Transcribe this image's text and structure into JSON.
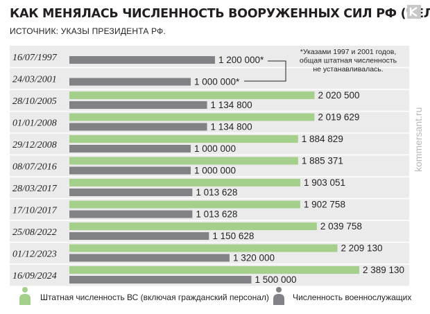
{
  "header": {
    "title": "КАК МЕНЯЛАСЬ ЧИСЛЕННОСТЬ ВООРУЖЕННЫХ СИЛ РФ (ЧЕЛ.)",
    "source": "ИСТОЧНИК: УКАЗЫ ПРЕЗИДЕНТА РФ.",
    "watermark": "kommersant.ru"
  },
  "colors": {
    "green": "#a4d08c",
    "gray": "#808285",
    "panel": "#ebebec",
    "separator": "#ffffff",
    "text": "#231f20"
  },
  "footnote": {
    "lines": [
      "*Указами 1997 и 2001 годов,",
      "общая штатная численность",
      "не устанавливалась."
    ]
  },
  "chart_data": {
    "type": "bar",
    "orientation": "horizontal",
    "categories": [
      "16/07/1997",
      "24/03/2001",
      "28/10/2005",
      "01/01/2008",
      "29/12/2008",
      "08/07/2016",
      "28/03/2017",
      "17/10/2017",
      "25/08/2022",
      "01/12/2023",
      "16/09/2024"
    ],
    "series": [
      {
        "name": "Штатная численность ВС (включая гражданский персонал)",
        "color": "#a4d08c",
        "values": [
          null,
          null,
          2020500,
          2019629,
          1884829,
          1885371,
          1903051,
          1902758,
          2039758,
          2209130,
          2389130
        ],
        "labels": [
          "",
          "",
          "2 020 500",
          "2 019 629",
          "1 884 829",
          "1 885 371",
          "1 903 051",
          "1 902 758",
          "2 039 758",
          "2 209 130",
          "2 389 130"
        ]
      },
      {
        "name": "Численность военнослужащих",
        "color": "#808285",
        "values": [
          1200000,
          1000000,
          1134800,
          1134800,
          1000000,
          1000000,
          1013628,
          1013628,
          1150628,
          1320000,
          1500000
        ],
        "labels": [
          "1 200 000*",
          "1 000 000*",
          "1 134 800",
          "1 134 800",
          "1 000 000",
          "1 000 000",
          "1 013 628",
          "1 013 628",
          "1 150 628",
          "1 320 000",
          "1 500 000"
        ]
      }
    ],
    "title": "КАК МЕНЯЛАСЬ ЧИСЛЕННОСТЬ ВООРУЖЕННЫХ СИЛ РФ (ЧЕЛ.)",
    "xlabel": "",
    "ylabel": "",
    "legend": "bottom",
    "grid": false
  }
}
